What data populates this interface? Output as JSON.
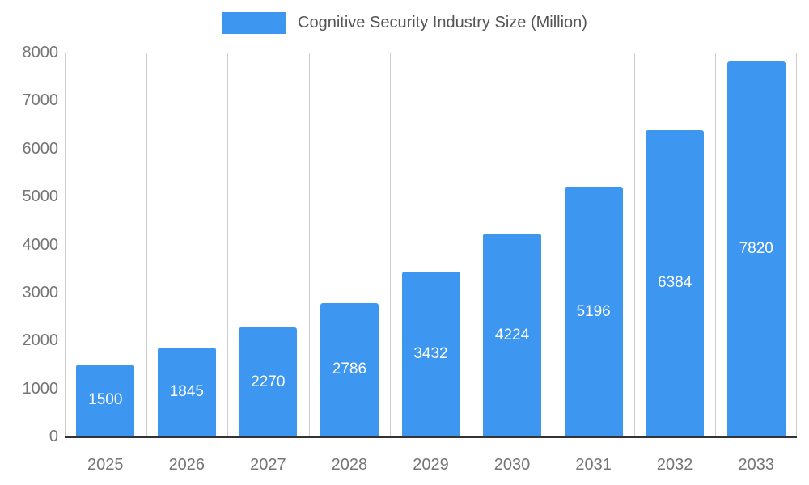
{
  "chart_data": {
    "type": "bar",
    "title": "Cognitive Security Industry Size (Million)",
    "categories": [
      "2025",
      "2026",
      "2027",
      "2028",
      "2029",
      "2030",
      "2031",
      "2032",
      "2033"
    ],
    "values": [
      1500,
      1845,
      2270,
      2786,
      3432,
      4224,
      5196,
      6384,
      7820
    ],
    "xlabel": "",
    "ylabel": "",
    "ylim": [
      0,
      8000
    ],
    "ytick_step": 1000,
    "yticks": [
      0,
      1000,
      2000,
      3000,
      4000,
      5000,
      6000,
      7000,
      8000
    ],
    "legend_position": "top",
    "grid": "vertical",
    "bar_color": "#3d97f0",
    "value_label_color": "#ffffff",
    "axis_text_color": "#757575",
    "grid_color": "#cccccc",
    "baseline_color": "#333333",
    "title_color": "#555555"
  }
}
